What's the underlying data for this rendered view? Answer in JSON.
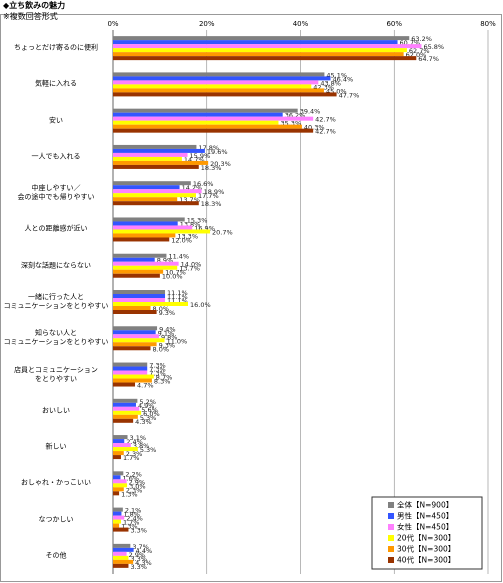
{
  "chart_data": {
    "type": "bar",
    "orientation": "horizontal",
    "title": "◆立ち飲みの魅力",
    "subtitle": "※複数回答形式",
    "categories": [
      "ちょっとだけ寄るのに便利",
      "気軽に入れる",
      "安い",
      "一人でも入れる",
      "中座しやすい／\n会の途中でも帰りやすい",
      "人との距離感が近い",
      "深刻な話題にならない",
      "一緒に行った人と\nコミュニケーションをとりやすい",
      "知らない人と\nコミュニケーションをとりやすい",
      "店員とコミュニケーション\nをとりやすい",
      "おいしい",
      "新しい",
      "おしゃれ・かっこいい",
      "なつかしい",
      "その他"
    ],
    "series": [
      {
        "name": "全体【N=900】",
        "color": "#808080",
        "values": [
          63.2,
          45.1,
          39.4,
          17.8,
          16.6,
          15.3,
          11.4,
          11.1,
          9.4,
          7.3,
          5.2,
          3.1,
          2.2,
          2.1,
          3.7
        ],
        "value_labels": [
          "63.2%",
          "45.1%",
          "39.4%",
          "17.8%",
          "16.6%",
          "15.3%",
          "11.4%",
          "11.1%",
          "9.4%",
          "7.3%",
          "5.2%",
          "3.1%",
          "2.2%",
          "2.1%",
          "3.7%"
        ]
      },
      {
        "name": "男性【N=450】",
        "color": "#3355ff",
        "values": [
          60.7,
          46.4,
          36.2,
          19.6,
          14.2,
          13.8,
          8.9,
          11.1,
          9.1,
          7.3,
          4.9,
          2.4,
          1.6,
          1.8,
          4.4
        ],
        "value_labels": [
          "60.7%",
          "46.4%",
          "36.2%",
          "19.6%",
          "14.2%",
          "13.8%",
          "8.9%",
          "11.1%",
          "9.1%",
          "7.3%",
          "4.9%",
          "2.4%",
          "1.6%",
          "1.8%",
          "4.4%"
        ]
      },
      {
        "name": "女性【N=450】",
        "color": "#ff80ff",
        "values": [
          65.8,
          43.8,
          42.7,
          15.9,
          18.9,
          16.9,
          14.0,
          11.1,
          9.8,
          7.3,
          5.6,
          3.8,
          2.9,
          2.4,
          2.9
        ],
        "value_labels": [
          "65.8%",
          "43.8%",
          "42.7%",
          "15.9%",
          "18.9%",
          "16.9%",
          "14.0%",
          "11.1%",
          "9.8%",
          "7.3%",
          "5.6%",
          "3.8%",
          "2.9%",
          "2.4%",
          "2.9%"
        ]
      },
      {
        "name": "20代【N=300】",
        "color": "#ffff00",
        "values": [
          62.7,
          42.3,
          35.3,
          14.7,
          17.7,
          20.7,
          13.7,
          16.0,
          11.0,
          8.7,
          6.0,
          5.3,
          3.0,
          1.7,
          3.3
        ],
        "value_labels": [
          "62.7%",
          "42.3%",
          "35.3%",
          "14.7%",
          "17.7%",
          "20.7%",
          "13.7%",
          "16.0%",
          "11.0%",
          "8.7%",
          "6.0%",
          "5.3%",
          "3.0%",
          "1.7%",
          "3.3%"
        ]
      },
      {
        "name": "30代【N=300】",
        "color": "#ff9900",
        "values": [
          62.0,
          45.0,
          40.3,
          20.3,
          13.7,
          13.3,
          10.7,
          8.0,
          9.3,
          8.3,
          5.3,
          2.3,
          2.3,
          1.3,
          4.3
        ],
        "value_labels": [
          "62.0%",
          "45.0%",
          "40.3%",
          "20.3%",
          "13.7%",
          "13.3%",
          "10.7%",
          "8.0%",
          "9.3%",
          "8.3%",
          "5.3%",
          "2.3%",
          "2.3%",
          "1.3%",
          "4.3%"
        ]
      },
      {
        "name": "40代【N=300】",
        "color": "#993300",
        "values": [
          64.7,
          47.7,
          42.7,
          18.3,
          18.3,
          12.0,
          10.0,
          9.3,
          8.0,
          4.7,
          4.3,
          1.7,
          1.3,
          3.3,
          3.3
        ],
        "value_labels": [
          "64.7%",
          "47.7%",
          "42.7%",
          "18.3%",
          "18.3%",
          "12.0%",
          "10.0%",
          "9.3%",
          "8.0%",
          "4.7%",
          "4.3%",
          "1.7%",
          "1.3%",
          "3.3%",
          "3.3%"
        ]
      }
    ],
    "xlim": [
      0,
      80
    ],
    "xticks": [
      {
        "value": 0,
        "label": "0%"
      },
      {
        "value": 20,
        "label": "20%"
      },
      {
        "value": 40,
        "label": "40%"
      },
      {
        "value": 60,
        "label": "60%"
      },
      {
        "value": 80,
        "label": "80%"
      }
    ],
    "grid": true,
    "legend": "lower right"
  }
}
